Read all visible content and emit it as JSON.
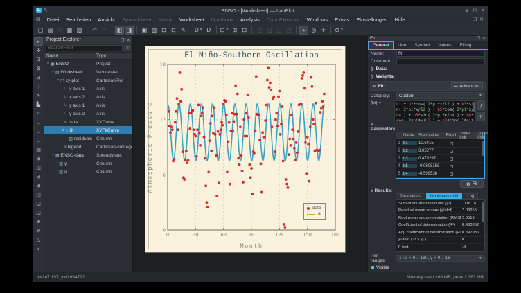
{
  "window": {
    "title": "ENSO - [Worksheet] — LabPlot",
    "controls": [
      {
        "name": "minimize",
        "glyph": "∨"
      },
      {
        "name": "maximize",
        "glyph": "◻"
      },
      {
        "name": "close",
        "glyph": "✕"
      }
    ]
  },
  "menu": {
    "items": [
      {
        "label": "Datei",
        "enabled": true
      },
      {
        "label": "Bearbeiten",
        "enabled": true
      },
      {
        "label": "Ansicht",
        "enabled": true
      },
      {
        "label": "Spreadsheet",
        "enabled": false
      },
      {
        "label": "Matrix",
        "enabled": false
      },
      {
        "label": "Worksheet",
        "enabled": true
      },
      {
        "label": "Notebook",
        "enabled": false
      },
      {
        "label": "Analysis",
        "enabled": true
      },
      {
        "label": "Data Extractor",
        "enabled": false
      },
      {
        "label": "Windows",
        "enabled": true
      },
      {
        "label": "Extras",
        "enabled": true
      },
      {
        "label": "Einstellungen",
        "enabled": true
      },
      {
        "label": "Hilfe",
        "enabled": true
      }
    ],
    "subwindow_controls": [
      {
        "name": "restore",
        "glyph": "❐"
      },
      {
        "name": "close",
        "glyph": "✕"
      }
    ]
  },
  "toolbar": {
    "items": [
      {
        "name": "new-project",
        "glyph": "▢"
      },
      {
        "name": "open-project",
        "glyph": "▤"
      },
      {
        "name": "save-project",
        "glyph": "▽",
        "dis": true
      },
      {
        "name": "print",
        "glyph": "▦"
      },
      {
        "name": "export",
        "glyph": "▧"
      },
      {
        "sep": true
      },
      {
        "name": "undo",
        "glyph": "↶"
      },
      {
        "name": "redo",
        "glyph": "↷",
        "dis": true
      },
      {
        "sep": true
      },
      {
        "name": "toggle-project-explorer",
        "glyph": "◧",
        "active": true
      },
      {
        "name": "toggle-properties-dock",
        "glyph": "◨",
        "active": true
      },
      {
        "sep": true
      },
      {
        "name": "new-worksheet",
        "glyph": "▣"
      },
      {
        "name": "new-spreadsheet",
        "glyph": "▥"
      },
      {
        "name": "new-matrix",
        "glyph": "⊞"
      },
      {
        "name": "import-data",
        "glyph": "⊟"
      },
      {
        "name": "new-notebook",
        "glyph": "✎"
      },
      {
        "sep": true
      },
      {
        "name": "new-curve",
        "glyph": "D",
        "dd": true
      },
      {
        "name": "duplicate",
        "glyph": "D"
      },
      {
        "sep": true
      },
      {
        "name": "zoom-mode",
        "glyph": "⊡",
        "dd": true
      },
      {
        "name": "zoom-in",
        "glyph": "⊞"
      },
      {
        "name": "zoom-out",
        "glyph": "⊟"
      },
      {
        "sep": true
      },
      {
        "name": "cartesian-plot-1",
        "glyph": "◰",
        "dis": true
      },
      {
        "name": "cartesian-plot-2",
        "glyph": "◱",
        "dis": true
      },
      {
        "name": "cartesian-plot-3",
        "glyph": "◲",
        "dis": true
      },
      {
        "name": "cartesian-plot-4",
        "glyph": "◳",
        "dis": true
      },
      {
        "sep": true
      },
      {
        "name": "navigate-pointer",
        "glyph": "▸",
        "active": true
      },
      {
        "name": "zoom-select-region",
        "glyph": "◎"
      },
      {
        "name": "crosshair",
        "glyph": "✛"
      },
      {
        "sep": true
      },
      {
        "name": "magnification",
        "glyph": "⊙",
        "dd": true
      }
    ]
  },
  "left_toolbar": {
    "items": [
      {
        "name": "select-pointer",
        "glyph": "▸",
        "active": true
      },
      {
        "name": "pan-navigate",
        "glyph": "✛"
      },
      {
        "name": "zoom-select",
        "glyph": "⊡"
      },
      {
        "name": "zoom-x-select",
        "glyph": "⊠"
      },
      {
        "name": "zoom-y-select",
        "glyph": "⊟"
      },
      {
        "name": "cursor-tool",
        "glyph": "┼",
        "dis": true
      },
      {
        "name": "add-curve",
        "glyph": "∿"
      },
      {
        "name": "add-histogram",
        "glyph": "▙"
      },
      {
        "name": "add-boxplot",
        "glyph": "⌑"
      },
      {
        "name": "add-x-axis",
        "glyph": "∟"
      },
      {
        "name": "add-y-axis",
        "glyph": "∟"
      },
      {
        "name": "add-axis",
        "glyph": "∟"
      },
      {
        "name": "add-legend",
        "glyph": "▤"
      },
      {
        "name": "add-text-label",
        "glyph": "⊞"
      },
      {
        "name": "vertical-layout",
        "glyph": "◫"
      },
      {
        "name": "horizontal-layout",
        "glyph": "⊟"
      },
      {
        "name": "grid-layout",
        "glyph": "⊞"
      },
      {
        "name": "break-layout",
        "glyph": "◰"
      },
      {
        "name": "add-image",
        "glyph": "◱"
      },
      {
        "name": "add-info-element",
        "glyph": "◲"
      },
      {
        "name": "zoom-in-view",
        "glyph": "⊕"
      },
      {
        "name": "zoom-out-view",
        "glyph": "⊖"
      },
      {
        "name": "zoom-fit-page",
        "glyph": "△"
      },
      {
        "name": "zoom-fit-selection",
        "glyph": "▵"
      }
    ]
  },
  "project_explorer": {
    "title": "Project Explorer",
    "icons": [
      {
        "name": "float",
        "glyph": "❐"
      },
      {
        "name": "close",
        "glyph": "✕"
      }
    ],
    "search_placeholder": "Search/Filter",
    "columns": {
      "name": "Name",
      "type": "Type"
    },
    "rows": [
      {
        "level": 0,
        "expand": true,
        "icon": "project",
        "name": "ENSO",
        "type": "Project"
      },
      {
        "level": 1,
        "expand": true,
        "icon": "worksheet",
        "name": "Worksheet",
        "type": "Worksheet"
      },
      {
        "level": 2,
        "expand": true,
        "icon": "plot",
        "name": "xy-plot",
        "type": "CartesianPlot"
      },
      {
        "level": 3,
        "branch": true,
        "icon": "axis",
        "name": "x axis 1",
        "type": "Axis"
      },
      {
        "level": 3,
        "branch": true,
        "icon": "axis",
        "name": "x axis 2",
        "type": "Axis"
      },
      {
        "level": 3,
        "branch": true,
        "icon": "axis",
        "name": "y axis 1",
        "type": "Axis"
      },
      {
        "level": 3,
        "branch": true,
        "icon": "axis",
        "name": "y axis 2",
        "type": "Axis"
      },
      {
        "level": 3,
        "branch": true,
        "icon": "curve",
        "name": "data",
        "type": "XYCurve"
      },
      {
        "level": 3,
        "expand": true,
        "icon": "curve",
        "name": "fit",
        "type": "XYFitCurve",
        "selected": true
      },
      {
        "level": 4,
        "branch": true,
        "icon": "column",
        "name": "residuals",
        "type": "Column"
      },
      {
        "level": 3,
        "branch": true,
        "icon": "legend",
        "name": "legend",
        "type": "CartesianPlotLegend"
      },
      {
        "level": 1,
        "expand": true,
        "icon": "spreadsheet",
        "name": "ENSO-data",
        "type": "Spreadsheet"
      },
      {
        "level": 2,
        "branch": true,
        "icon": "column",
        "name": "y",
        "type": "Column"
      },
      {
        "level": 2,
        "branch": true,
        "icon": "column",
        "name": "x",
        "type": "Column"
      }
    ]
  },
  "chart_data": {
    "type": "scatter",
    "title": "El Niño-Southern Oscillation",
    "xlabel": "Month",
    "ylabel": "Atmospheric Pressure",
    "xlim": [
      0,
      180
    ],
    "ylim": [
      0,
      18
    ],
    "xticks": [
      0,
      30,
      60,
      90,
      120,
      150,
      180
    ],
    "yticks": [
      0,
      6,
      12,
      18
    ],
    "grid": "dashed",
    "colors": {
      "sheet": "#fbf2de",
      "title": "#2b5a75",
      "axis": "#6f6f66",
      "ticklabel": "#8a8775",
      "grid": "#cdc7b0"
    },
    "legend": {
      "position": "bottom-right",
      "entries": [
        {
          "label": "data",
          "type": "scatter",
          "color": "#d42a2a"
        },
        {
          "label": "fit",
          "type": "line",
          "color": "#b9bd2c"
        }
      ]
    },
    "series": [
      {
        "name": "data",
        "type": "scatter",
        "color": "#d42a2a",
        "x_start": 1,
        "x_step": 1,
        "y": [
          12.9,
          11.3,
          10.6,
          11.2,
          10.9,
          7.5,
          7.7,
          11.7,
          12.9,
          14.3,
          10.9,
          13.7,
          17.1,
          14.0,
          15.3,
          8.5,
          5.7,
          5.5,
          7.6,
          8.6,
          7.3,
          7.6,
          12.7,
          11.0,
          12.7,
          12.9,
          13.0,
          10.9,
          10.4,
          10.2,
          8.0,
          10.9,
          13.6,
          10.5,
          9.2,
          12.4,
          12.7,
          13.3,
          10.1,
          7.8,
          4.8,
          3.0,
          2.5,
          6.3,
          9.7,
          11.6,
          8.6,
          12.4,
          10.5,
          13.3,
          10.4,
          8.1,
          3.7,
          10.7,
          5.1,
          10.4,
          10.9,
          11.7,
          11.4,
          13.7,
          14.1,
          14.0,
          12.5,
          6.3,
          9.6,
          11.7,
          5.0,
          10.8,
          12.7,
          10.8,
          11.8,
          12.6,
          15.7,
          12.6,
          14.8,
          7.8,
          7.1,
          11.2,
          8.1,
          6.4,
          5.2,
          12.0,
          10.2,
          12.7,
          10.2,
          14.7,
          12.2,
          7.1,
          5.7,
          6.7,
          3.9,
          8.5,
          8.3,
          10.8,
          16.7,
          12.6,
          12.5,
          12.5,
          9.8,
          7.2,
          4.1,
          10.6,
          10.1,
          10.1,
          11.9,
          13.6,
          16.3,
          17.6,
          15.5,
          16.0,
          15.2,
          11.2,
          14.3,
          14.5,
          8.5,
          12.0,
          12.7,
          11.3,
          14.5,
          15.1,
          10.4,
          11.5,
          13.4,
          7.5,
          0.6,
          0.3,
          5.5,
          5.0,
          4.6,
          8.2,
          9.9,
          9.2,
          12.5,
          10.9,
          9.9,
          8.9,
          7.6,
          9.5,
          8.4,
          10.7,
          13.6,
          13.7,
          13.7,
          16.5,
          16.8,
          17.1,
          15.4,
          9.5,
          6.1,
          10.1,
          9.3,
          5.3,
          11.2,
          16.6,
          15.6,
          12.0,
          11.5,
          8.6,
          13.8,
          8.7,
          8.6,
          8.6,
          8.7,
          12.8,
          13.2,
          14.0,
          13.4,
          14.8
        ]
      },
      {
        "name": "fit",
        "type": "line",
        "color": "#3aa2c2",
        "width": 1.6,
        "model": "b1 + b2*cos(2*pi*x/12) + b3*sin(2*pi*x/12)",
        "params": {
          "b1": 10.6415,
          "b2": 3.05277,
          "b3": 0.479297
        },
        "x_range": [
          1,
          168
        ]
      }
    ]
  },
  "fit_dock": {
    "title": "Fit",
    "icons": [
      {
        "name": "float",
        "glyph": "❐"
      },
      {
        "name": "close",
        "glyph": "✕"
      }
    ],
    "tabs": [
      {
        "label": "General",
        "active": true
      },
      {
        "label": "Line"
      },
      {
        "label": "Symbol"
      },
      {
        "label": "Values"
      },
      {
        "label": "Filling"
      }
    ],
    "name_label": "Name:",
    "name_value": "fit",
    "comment_label": "Comment:",
    "comment_value": "",
    "data_section": "Data:",
    "weights_section": "Weights:",
    "fit_section": "Fit:",
    "advanced_button": "Advanced",
    "category_label": "Category:",
    "category_value": "Custom",
    "fx_label": "f(x) =",
    "formula": "b1 + b2*cos( 2*pi*x/12 ) + b3*sin( 2*pi*x/12 ) + b5*cos( 2*pi*x/b4 ) + b6*sin( 2*pi*x/b4 ) + b8*cos( 2*pi*x/b7 ) + b9*sin( 2*pi*x/b7 )",
    "fx_buttons": [
      {
        "name": "insert-function",
        "glyph": "ƒ"
      },
      {
        "name": "insert-constant",
        "glyph": "π"
      }
    ],
    "parameters_label": "Parameters:",
    "parameters": {
      "columns": [
        "Name",
        "Start value",
        "Fixed",
        "Lower limit",
        "Upper limit"
      ],
      "rows": [
        {
          "idx": "1",
          "name": "b1",
          "start": "10.6415"
        },
        {
          "idx": "2",
          "name": "b2",
          "start": "3.05277"
        },
        {
          "idx": "3",
          "name": "b3",
          "start": "0.479297"
        },
        {
          "idx": "4",
          "name": "b5",
          "start": "-0.0808158"
        },
        {
          "idx": "5",
          "name": "b4",
          "start": "-6.599536"
        }
      ]
    },
    "fit_button": "Fit",
    "results_label": "Results:",
    "results_tabs": [
      {
        "label": "Parameters"
      },
      {
        "label": "Goodness of fit",
        "active": true
      },
      {
        "label": "Log"
      }
    ],
    "goodness": [
      {
        "label": "Sum of squared residuals (χ²)",
        "value": "1118.18"
      },
      {
        "label": "Residual mean square (χ²/dof)",
        "value": "7.03255"
      },
      {
        "label": "Root mean square deviation (RMSD, SD)",
        "value": "2.6519"
      },
      {
        "label": "Coefficient of determination (R²)",
        "value": "0.430352"
      },
      {
        "label": "Adj. coefficient of determination (R̄²)",
        "value": "0.397936"
      },
      {
        "label": "χ²-test ( P > χ² )",
        "value": "0"
      },
      {
        "label": "F test",
        "value": "15"
      }
    ],
    "plot_ranges_label": "Plot ranges:",
    "plot_ranges_value": "1 : x = 0 .. 180, y = 0 .. 18",
    "visible_label": "Visible",
    "visible_checked": true,
    "bottom_buttons": [
      {
        "name": "load-template",
        "glyph": "❐"
      },
      {
        "name": "save-template",
        "glyph": "▼"
      },
      {
        "name": "save-as-template",
        "glyph": "✎"
      }
    ]
  },
  "statusbar": {
    "left": "x=147.197, y=0.994722",
    "right": "Memory used 168 MB, peak 3 362 MB"
  }
}
